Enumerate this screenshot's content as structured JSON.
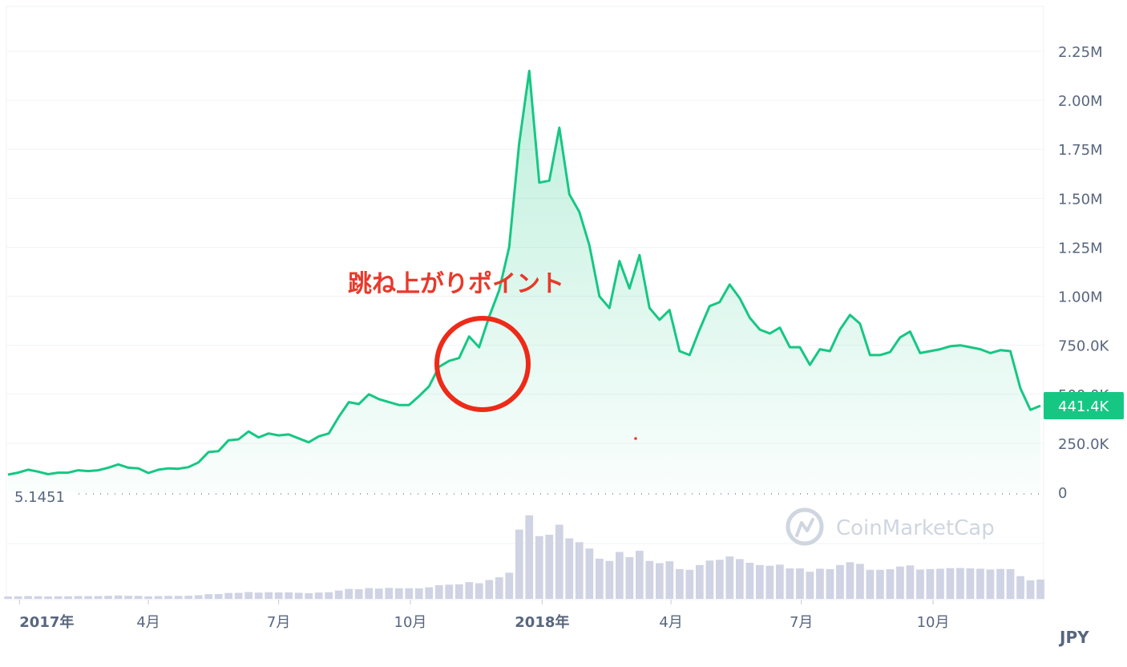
{
  "chart_data": {
    "type": "area",
    "currency": "JPY",
    "annotation": "跳ね上がりポイント",
    "current_price_label": "441.4K",
    "baseline_label": "5.1451",
    "watermark": "CoinMarketCap",
    "y_ticks": [
      "2.25M",
      "2.00M",
      "1.75M",
      "1.50M",
      "1.25M",
      "1.00M",
      "750.0K",
      "500.0K",
      "250.0K",
      "0"
    ],
    "y_tick_values": [
      2250000,
      2000000,
      1750000,
      1500000,
      1250000,
      1000000,
      750000,
      500000,
      250000,
      0
    ],
    "ylim": [
      0,
      2400000
    ],
    "x_ticks": [
      {
        "label": "2017年",
        "x": "2017-01-01",
        "major": true
      },
      {
        "label": "4月",
        "x": "2017-04-01",
        "major": false
      },
      {
        "label": "7月",
        "x": "2017-07-01",
        "major": false
      },
      {
        "label": "10月",
        "x": "2017-10-01",
        "major": false
      },
      {
        "label": "2018年",
        "x": "2018-01-01",
        "major": true
      },
      {
        "label": "4月",
        "x": "2018-04-01",
        "major": false
      },
      {
        "label": "7月",
        "x": "2018-07-01",
        "major": false
      },
      {
        "label": "10月",
        "x": "2018-10-01",
        "major": false
      }
    ],
    "series": [
      {
        "x": [
          "2016-12-24",
          "2016-12-31",
          "2017-01-07",
          "2017-01-14",
          "2017-01-21",
          "2017-01-28",
          "2017-02-04",
          "2017-02-11",
          "2017-02-18",
          "2017-02-25",
          "2017-03-04",
          "2017-03-11",
          "2017-03-18",
          "2017-03-25",
          "2017-04-01",
          "2017-04-08",
          "2017-04-15",
          "2017-04-22",
          "2017-04-29",
          "2017-05-06",
          "2017-05-13",
          "2017-05-20",
          "2017-05-27",
          "2017-06-03",
          "2017-06-10",
          "2017-06-17",
          "2017-06-24",
          "2017-07-01",
          "2017-07-08",
          "2017-07-15",
          "2017-07-22",
          "2017-07-29",
          "2017-08-05",
          "2017-08-12",
          "2017-08-19",
          "2017-08-26",
          "2017-09-02",
          "2017-09-09",
          "2017-09-16",
          "2017-09-23",
          "2017-09-30",
          "2017-10-07",
          "2017-10-14",
          "2017-10-21",
          "2017-10-28",
          "2017-11-04",
          "2017-11-11",
          "2017-11-18",
          "2017-11-25",
          "2017-12-02",
          "2017-12-09",
          "2017-12-16",
          "2017-12-23",
          "2017-12-30",
          "2018-01-06",
          "2018-01-13",
          "2018-01-20",
          "2018-01-27",
          "2018-02-03",
          "2018-02-10",
          "2018-02-17",
          "2018-02-24",
          "2018-03-03",
          "2018-03-10",
          "2018-03-17",
          "2018-03-24",
          "2018-03-31",
          "2018-04-07",
          "2018-04-14",
          "2018-04-21",
          "2018-04-28",
          "2018-05-05",
          "2018-05-12",
          "2018-05-19",
          "2018-05-26",
          "2018-06-02",
          "2018-06-09",
          "2018-06-16",
          "2018-06-23",
          "2018-06-30",
          "2018-07-07",
          "2018-07-14",
          "2018-07-21",
          "2018-07-28",
          "2018-08-04",
          "2018-08-11",
          "2018-08-18",
          "2018-08-25",
          "2018-09-01",
          "2018-09-08",
          "2018-09-15",
          "2018-09-22",
          "2018-09-29",
          "2018-10-06",
          "2018-10-13",
          "2018-10-20",
          "2018-10-27",
          "2018-11-03",
          "2018-11-10",
          "2018-11-17",
          "2018-11-24",
          "2018-12-01",
          "2018-12-08",
          "2018-12-15"
        ],
        "y": [
          90000,
          100000,
          115000,
          105000,
          92000,
          100000,
          100000,
          112000,
          108000,
          112000,
          125000,
          142000,
          125000,
          122000,
          98000,
          115000,
          122000,
          120000,
          128000,
          152000,
          205000,
          210000,
          265000,
          270000,
          310000,
          280000,
          300000,
          290000,
          295000,
          275000,
          255000,
          285000,
          300000,
          385000,
          460000,
          450000,
          500000,
          475000,
          460000,
          445000,
          445000,
          490000,
          540000,
          640000,
          670000,
          685000,
          795000,
          740000,
          895000,
          1030000,
          1250000,
          1780000,
          2150000,
          1580000,
          1590000,
          1860000,
          1520000,
          1430000,
          1260000,
          1000000,
          940000,
          1180000,
          1040000,
          1210000,
          940000,
          880000,
          930000,
          720000,
          700000,
          830000,
          950000,
          970000,
          1060000,
          990000,
          890000,
          830000,
          810000,
          840000,
          740000,
          740000,
          650000,
          730000,
          720000,
          830000,
          905000,
          860000,
          700000,
          700000,
          715000,
          790000,
          820000,
          710000,
          720000,
          730000,
          745000,
          750000,
          740000,
          730000,
          710000,
          725000,
          720000,
          530000,
          420000,
          441400
        ]
      }
    ],
    "volume_max": 100,
    "volume": [
      1,
      1,
      1,
      1,
      1,
      1,
      1,
      1,
      1,
      1,
      1,
      1,
      1,
      1,
      1,
      1,
      1,
      1,
      1,
      1,
      1,
      1,
      1,
      1,
      1,
      1,
      1,
      1,
      1,
      1,
      1,
      1,
      1,
      1,
      1,
      1,
      1,
      1,
      3,
      3,
      3,
      1,
      1,
      1,
      1,
      1,
      1,
      1,
      1,
      1,
      1,
      6,
      7,
      8,
      10,
      10,
      8,
      7,
      7,
      6,
      6,
      6,
      6,
      6,
      6,
      6,
      6,
      6,
      6,
      6,
      6,
      6,
      6,
      6,
      6,
      6,
      6,
      6,
      6,
      6,
      6,
      6,
      6,
      6,
      6,
      6,
      6,
      6,
      6,
      6,
      6,
      6,
      6,
      6,
      6,
      6,
      6,
      6,
      6,
      6,
      6,
      6,
      6,
      6
    ]
  }
}
